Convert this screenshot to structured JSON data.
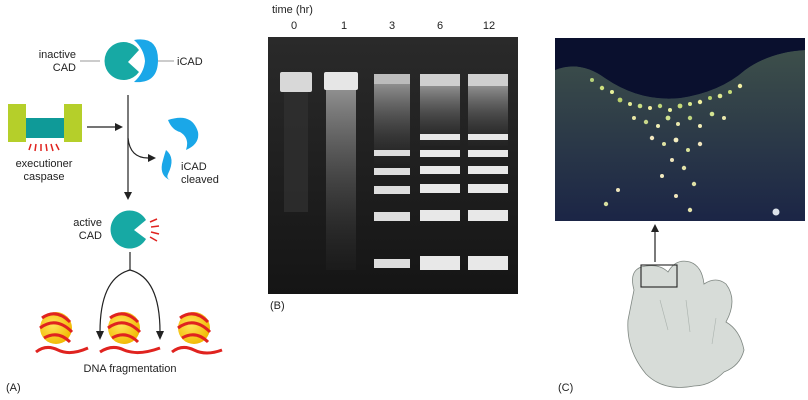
{
  "panel_a": {
    "letter": "(A)",
    "inactive_cad": [
      "inactive",
      "CAD"
    ],
    "icad": "iCAD",
    "executioner_caspase": [
      "executioner",
      "caspase"
    ],
    "icad_cleaved": [
      "iCAD",
      "cleaved"
    ],
    "active_cad": [
      "active",
      "CAD"
    ],
    "dna_fragmentation": "DNA fragmentation"
  },
  "panel_b": {
    "letter": "(B)",
    "time_label": "time (hr)",
    "lanes": [
      "0",
      "1",
      "3",
      "6",
      "12"
    ]
  },
  "panel_c": {
    "letter": "(C)"
  },
  "colors": {
    "cad_teal": "#17a9a4",
    "icad_blue": "#1aa7e8",
    "caspase_green": "#b5cf2a",
    "caspase_teal": "#0f9a98",
    "dna_red": "#e0231f",
    "nucleosome_yellow": "#f7c316",
    "gel_bg": "#1c1c1c",
    "micro_bg": "#0c1840",
    "limb_fill": "#d7dcd8"
  }
}
